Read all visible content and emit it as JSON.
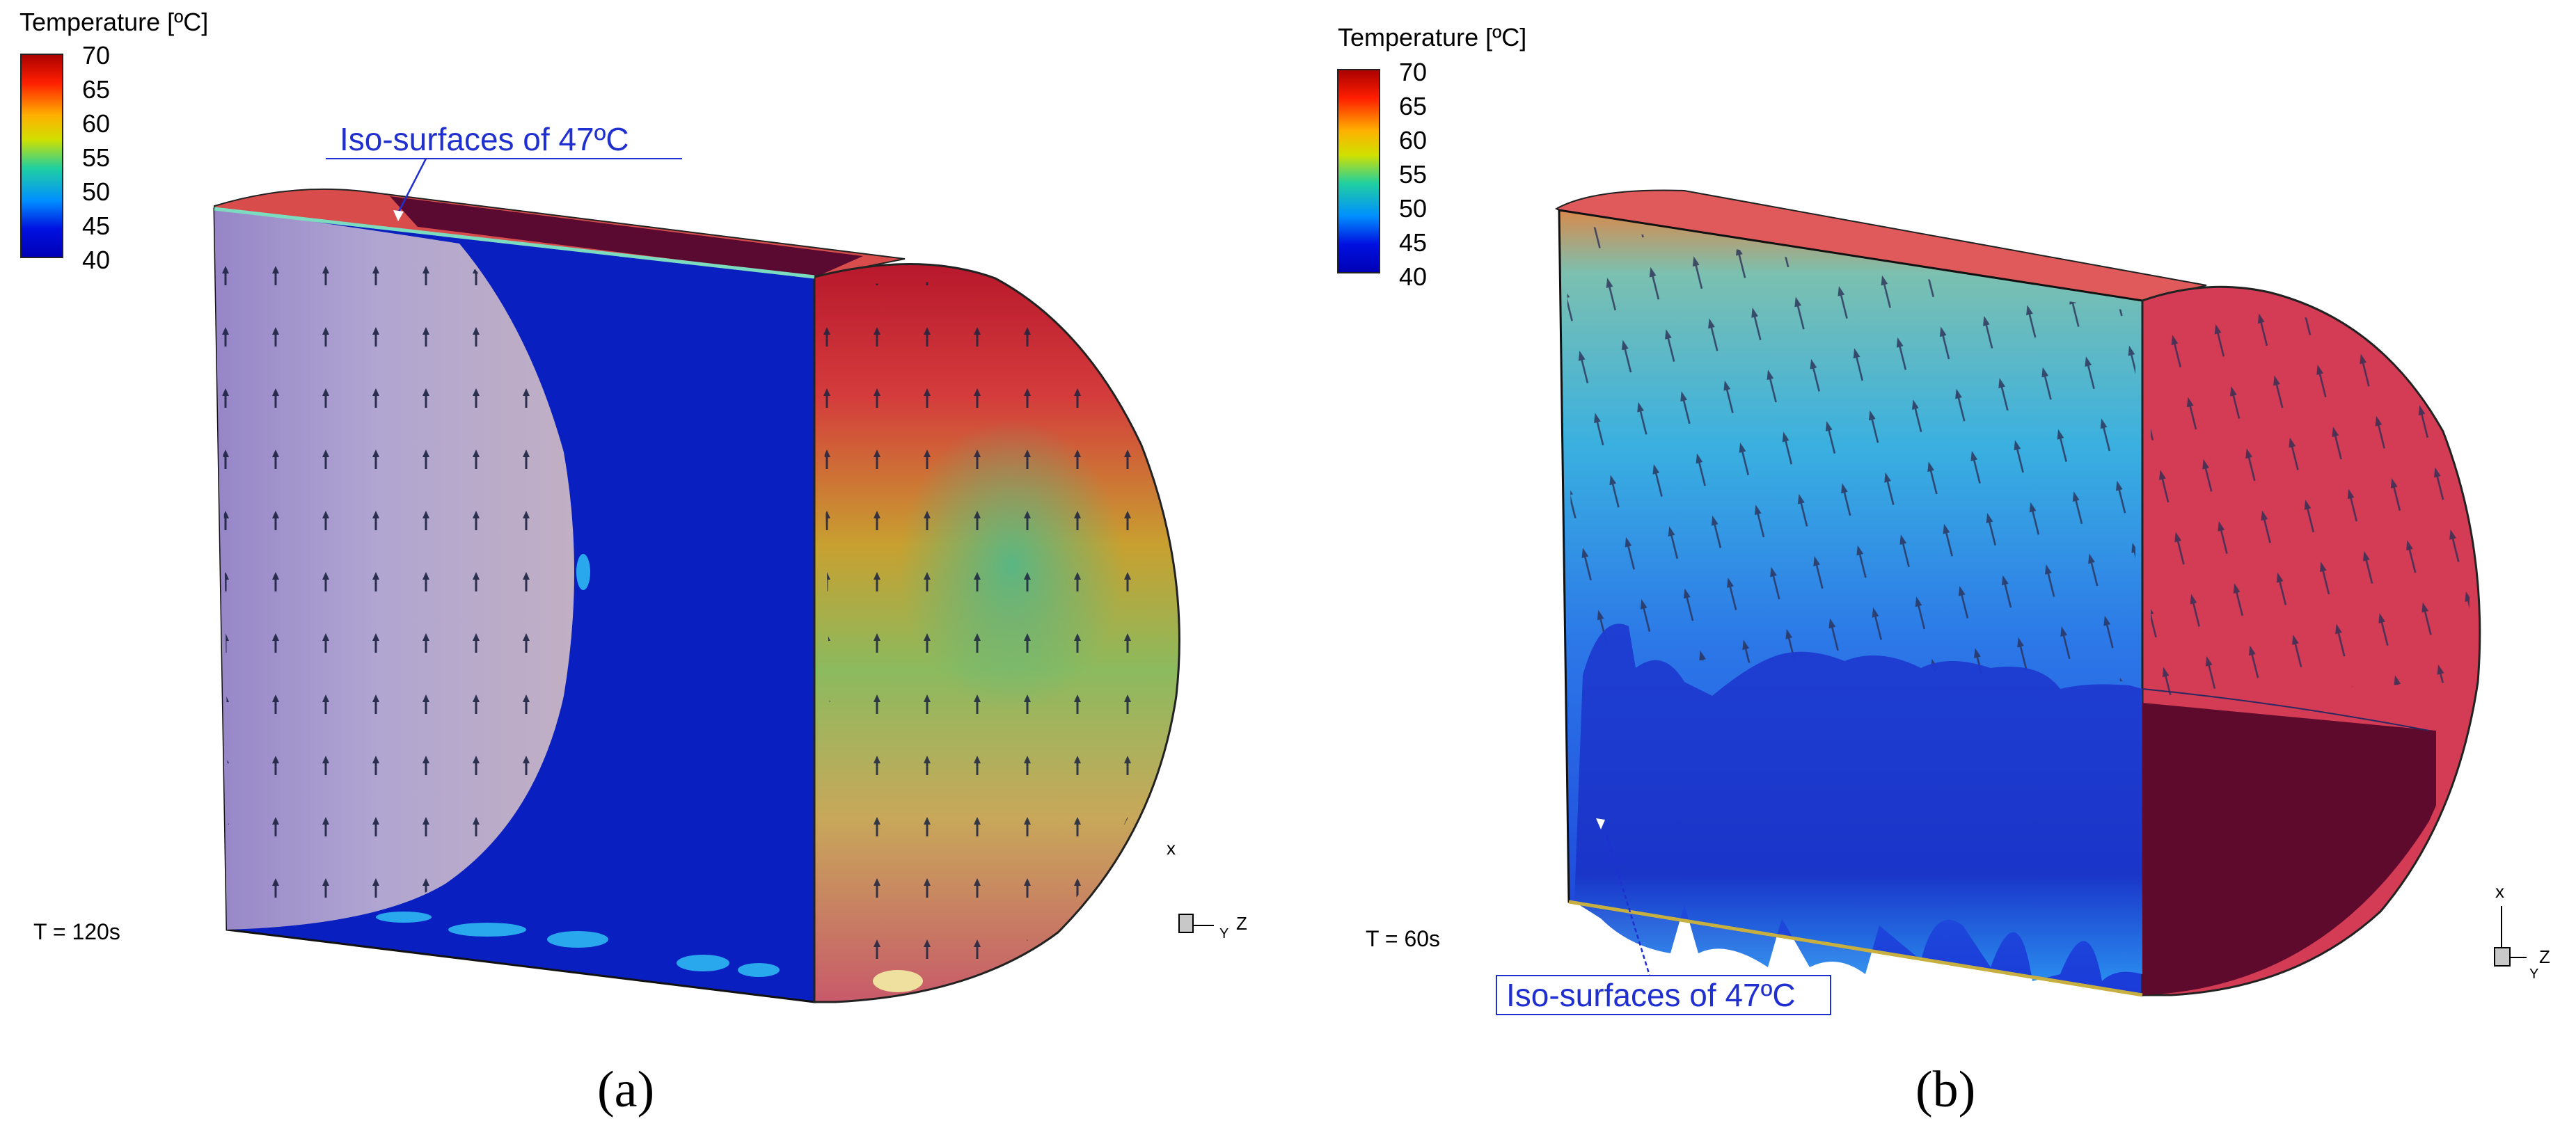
{
  "panels": [
    {
      "id": "a",
      "legend": {
        "title": "Temperature [ºC]",
        "ticks": [
          "70",
          "65",
          "60",
          "55",
          "50",
          "45",
          "40"
        ]
      },
      "annotation": "Iso-surfaces of 47ºC",
      "time": "T = 120s",
      "axis": {
        "x": "x",
        "y": "Y",
        "z": "Z"
      },
      "caption": "(a)"
    },
    {
      "id": "b",
      "legend": {
        "title": "Temperature [ºC]",
        "ticks": [
          "70",
          "65",
          "60",
          "55",
          "50",
          "45",
          "40"
        ]
      },
      "annotation": "Iso-surfaces of 47ºC",
      "time": "T = 60s",
      "axis": {
        "x": "x",
        "y": "Y",
        "z": "Z"
      },
      "caption": "(b)"
    }
  ],
  "colors": {
    "scale": [
      "#b00000",
      "#ff2000",
      "#ffb400",
      "#d8e000",
      "#20d8a0",
      "#0090ff",
      "#0000c8"
    ],
    "annotation_text": "#1f2fd0",
    "arrows": "#1b2240"
  }
}
